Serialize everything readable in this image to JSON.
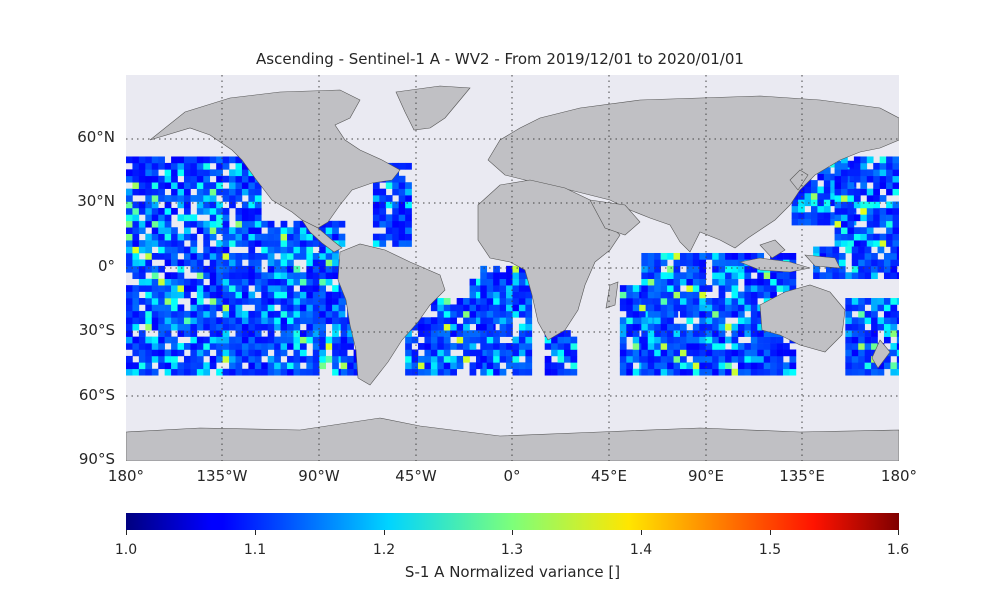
{
  "title": "Ascending - Sentinel-1 A - WV2 - From 2019/12/01 to 2020/01/01",
  "map": {
    "projection": "equirectangular",
    "lon_range": [
      -180,
      180
    ],
    "lat_range": [
      -90,
      90
    ],
    "background_color": "#eaeaf2",
    "land_color": "#c0c0c4",
    "coastline_color": "#555555",
    "gridlines": "dotted",
    "lat_ticks": [
      "60°N",
      "30°N",
      "0°",
      "30°S",
      "60°S",
      "90°S"
    ],
    "lon_ticks": [
      "180°",
      "135°W",
      "90°W",
      "45°W",
      "0°",
      "45°E",
      "90°E",
      "135°E",
      "180°"
    ]
  },
  "data_coverage": {
    "description_lat_band": [
      -50,
      50
    ],
    "dominant_color": "#0a2cff",
    "note_high_values": "scattered green/yellow cells along edges"
  },
  "colorbar": {
    "label": "S-1 A Normalized variance []",
    "colormap": "jet",
    "ticks": [
      "1.0",
      "1.1",
      "1.2",
      "1.3",
      "1.4",
      "1.5",
      "1.6"
    ],
    "range": [
      1.0,
      1.6
    ]
  }
}
